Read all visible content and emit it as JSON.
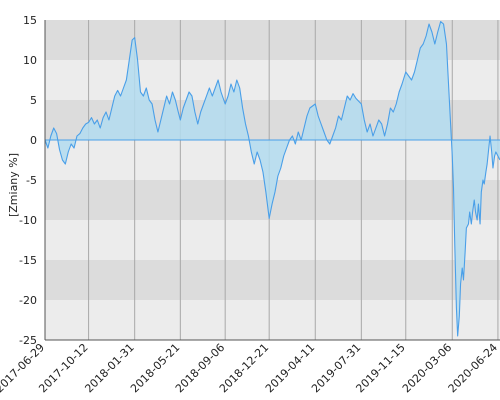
{
  "chart_data": {
    "type": "area",
    "title": "",
    "xlabel": "",
    "ylabel": "[Zmiany %]",
    "ylim": [
      -25,
      15
    ],
    "y_ticks": [
      15,
      10,
      5,
      0,
      -5,
      -10,
      -15,
      -20,
      -25
    ],
    "x_tick_labels": [
      "2017-06-29",
      "2017-10-12",
      "2018-01-31",
      "2018-05-21",
      "2018-09-06",
      "2018-12-21",
      "2019-04-11",
      "2019-07-31",
      "2019-11-15",
      "2020-03-06",
      "2020-06-24"
    ],
    "grid": true,
    "colors": {
      "band_dark": "#dcdcdc",
      "band_light": "#ececec",
      "line": "#4a9fe8",
      "fill": "#b3dcf0",
      "gridline": "#a8a8a8",
      "axis": "#555555"
    },
    "series": [
      {
        "values": [
          {
            "x": "2017-06-29",
            "y": 0.0
          },
          {
            "x": "2017-07-06",
            "y": -1.0
          },
          {
            "x": "2017-07-13",
            "y": 0.5
          },
          {
            "x": "2017-07-20",
            "y": 1.5
          },
          {
            "x": "2017-07-27",
            "y": 0.8
          },
          {
            "x": "2017-08-03",
            "y": -1.2
          },
          {
            "x": "2017-08-10",
            "y": -2.5
          },
          {
            "x": "2017-08-17",
            "y": -3.0
          },
          {
            "x": "2017-08-24",
            "y": -1.5
          },
          {
            "x": "2017-08-31",
            "y": -0.5
          },
          {
            "x": "2017-09-07",
            "y": -1.0
          },
          {
            "x": "2017-09-14",
            "y": 0.5
          },
          {
            "x": "2017-09-21",
            "y": 0.8
          },
          {
            "x": "2017-09-28",
            "y": 1.5
          },
          {
            "x": "2017-10-05",
            "y": 2.0
          },
          {
            "x": "2017-10-12",
            "y": 2.2
          },
          {
            "x": "2017-10-19",
            "y": 2.8
          },
          {
            "x": "2017-10-26",
            "y": 2.0
          },
          {
            "x": "2017-11-02",
            "y": 2.5
          },
          {
            "x": "2017-11-09",
            "y": 1.5
          },
          {
            "x": "2017-11-16",
            "y": 2.8
          },
          {
            "x": "2017-11-23",
            "y": 3.5
          },
          {
            "x": "2017-11-30",
            "y": 2.5
          },
          {
            "x": "2017-12-07",
            "y": 4.0
          },
          {
            "x": "2017-12-14",
            "y": 5.5
          },
          {
            "x": "2017-12-21",
            "y": 6.2
          },
          {
            "x": "2017-12-28",
            "y": 5.5
          },
          {
            "x": "2018-01-04",
            "y": 6.5
          },
          {
            "x": "2018-01-11",
            "y": 7.5
          },
          {
            "x": "2018-01-18",
            "y": 10.0
          },
          {
            "x": "2018-01-25",
            "y": 12.5
          },
          {
            "x": "2018-01-31",
            "y": 12.8
          },
          {
            "x": "2018-02-07",
            "y": 10.0
          },
          {
            "x": "2018-02-14",
            "y": 6.0
          },
          {
            "x": "2018-02-21",
            "y": 5.5
          },
          {
            "x": "2018-02-28",
            "y": 6.5
          },
          {
            "x": "2018-03-07",
            "y": 5.0
          },
          {
            "x": "2018-03-14",
            "y": 4.5
          },
          {
            "x": "2018-03-21",
            "y": 2.5
          },
          {
            "x": "2018-03-28",
            "y": 1.0
          },
          {
            "x": "2018-04-04",
            "y": 2.5
          },
          {
            "x": "2018-04-11",
            "y": 4.0
          },
          {
            "x": "2018-04-18",
            "y": 5.5
          },
          {
            "x": "2018-04-25",
            "y": 4.5
          },
          {
            "x": "2018-05-02",
            "y": 6.0
          },
          {
            "x": "2018-05-09",
            "y": 5.0
          },
          {
            "x": "2018-05-16",
            "y": 3.5
          },
          {
            "x": "2018-05-21",
            "y": 2.5
          },
          {
            "x": "2018-05-28",
            "y": 4.0
          },
          {
            "x": "2018-06-04",
            "y": 5.0
          },
          {
            "x": "2018-06-11",
            "y": 6.0
          },
          {
            "x": "2018-06-18",
            "y": 5.5
          },
          {
            "x": "2018-06-25",
            "y": 3.5
          },
          {
            "x": "2018-07-02",
            "y": 2.0
          },
          {
            "x": "2018-07-09",
            "y": 3.5
          },
          {
            "x": "2018-07-16",
            "y": 4.5
          },
          {
            "x": "2018-07-23",
            "y": 5.5
          },
          {
            "x": "2018-07-30",
            "y": 6.5
          },
          {
            "x": "2018-08-06",
            "y": 5.5
          },
          {
            "x": "2018-08-13",
            "y": 6.5
          },
          {
            "x": "2018-08-20",
            "y": 7.5
          },
          {
            "x": "2018-08-27",
            "y": 6.0
          },
          {
            "x": "2018-09-06",
            "y": 4.5
          },
          {
            "x": "2018-09-13",
            "y": 5.5
          },
          {
            "x": "2018-09-20",
            "y": 7.0
          },
          {
            "x": "2018-09-27",
            "y": 6.0
          },
          {
            "x": "2018-10-04",
            "y": 7.5
          },
          {
            "x": "2018-10-11",
            "y": 6.5
          },
          {
            "x": "2018-10-18",
            "y": 4.0
          },
          {
            "x": "2018-10-25",
            "y": 2.0
          },
          {
            "x": "2018-11-01",
            "y": 0.5
          },
          {
            "x": "2018-11-08",
            "y": -1.5
          },
          {
            "x": "2018-11-15",
            "y": -3.0
          },
          {
            "x": "2018-11-22",
            "y": -1.5
          },
          {
            "x": "2018-11-29",
            "y": -2.5
          },
          {
            "x": "2018-12-06",
            "y": -4.0
          },
          {
            "x": "2018-12-13",
            "y": -6.5
          },
          {
            "x": "2018-12-21",
            "y": -9.8
          },
          {
            "x": "2018-12-28",
            "y": -8.0
          },
          {
            "x": "2019-01-04",
            "y": -6.5
          },
          {
            "x": "2019-01-11",
            "y": -4.5
          },
          {
            "x": "2019-01-18",
            "y": -3.5
          },
          {
            "x": "2019-01-25",
            "y": -2.0
          },
          {
            "x": "2019-02-01",
            "y": -1.0
          },
          {
            "x": "2019-02-08",
            "y": 0.0
          },
          {
            "x": "2019-02-15",
            "y": 0.5
          },
          {
            "x": "2019-02-22",
            "y": -0.5
          },
          {
            "x": "2019-03-01",
            "y": 1.0
          },
          {
            "x": "2019-03-08",
            "y": 0.0
          },
          {
            "x": "2019-03-15",
            "y": 1.5
          },
          {
            "x": "2019-03-22",
            "y": 3.0
          },
          {
            "x": "2019-03-29",
            "y": 4.0
          },
          {
            "x": "2019-04-11",
            "y": 4.5
          },
          {
            "x": "2019-04-18",
            "y": 3.0
          },
          {
            "x": "2019-04-25",
            "y": 2.0
          },
          {
            "x": "2019-05-02",
            "y": 1.0
          },
          {
            "x": "2019-05-09",
            "y": 0.0
          },
          {
            "x": "2019-05-16",
            "y": -0.5
          },
          {
            "x": "2019-05-23",
            "y": 0.5
          },
          {
            "x": "2019-05-30",
            "y": 1.5
          },
          {
            "x": "2019-06-06",
            "y": 3.0
          },
          {
            "x": "2019-06-13",
            "y": 2.5
          },
          {
            "x": "2019-06-20",
            "y": 4.0
          },
          {
            "x": "2019-06-27",
            "y": 5.5
          },
          {
            "x": "2019-07-04",
            "y": 5.0
          },
          {
            "x": "2019-07-11",
            "y": 5.8
          },
          {
            "x": "2019-07-18",
            "y": 5.2
          },
          {
            "x": "2019-07-31",
            "y": 4.5
          },
          {
            "x": "2019-08-07",
            "y": 2.5
          },
          {
            "x": "2019-08-14",
            "y": 1.0
          },
          {
            "x": "2019-08-21",
            "y": 2.0
          },
          {
            "x": "2019-08-28",
            "y": 0.5
          },
          {
            "x": "2019-09-04",
            "y": 1.5
          },
          {
            "x": "2019-09-11",
            "y": 2.5
          },
          {
            "x": "2019-09-18",
            "y": 2.0
          },
          {
            "x": "2019-09-25",
            "y": 0.5
          },
          {
            "x": "2019-10-02",
            "y": 2.0
          },
          {
            "x": "2019-10-09",
            "y": 4.0
          },
          {
            "x": "2019-10-16",
            "y": 3.5
          },
          {
            "x": "2019-10-23",
            "y": 4.5
          },
          {
            "x": "2019-10-30",
            "y": 6.0
          },
          {
            "x": "2019-11-06",
            "y": 7.0
          },
          {
            "x": "2019-11-15",
            "y": 8.5
          },
          {
            "x": "2019-11-22",
            "y": 8.0
          },
          {
            "x": "2019-11-29",
            "y": 7.5
          },
          {
            "x": "2019-12-06",
            "y": 8.5
          },
          {
            "x": "2019-12-13",
            "y": 10.0
          },
          {
            "x": "2019-12-20",
            "y": 11.5
          },
          {
            "x": "2019-12-27",
            "y": 12.0
          },
          {
            "x": "2020-01-03",
            "y": 13.0
          },
          {
            "x": "2020-01-10",
            "y": 14.5
          },
          {
            "x": "2020-01-17",
            "y": 13.5
          },
          {
            "x": "2020-01-24",
            "y": 12.0
          },
          {
            "x": "2020-01-31",
            "y": 13.5
          },
          {
            "x": "2020-02-07",
            "y": 14.8
          },
          {
            "x": "2020-02-14",
            "y": 14.5
          },
          {
            "x": "2020-02-21",
            "y": 12.0
          },
          {
            "x": "2020-02-28",
            "y": 5.0
          },
          {
            "x": "2020-03-06",
            "y": -2.0
          },
          {
            "x": "2020-03-09",
            "y": -6.0
          },
          {
            "x": "2020-03-12",
            "y": -13.0
          },
          {
            "x": "2020-03-16",
            "y": -21.0
          },
          {
            "x": "2020-03-19",
            "y": -24.5
          },
          {
            "x": "2020-03-23",
            "y": -22.0
          },
          {
            "x": "2020-03-26",
            "y": -18.0
          },
          {
            "x": "2020-03-30",
            "y": -16.0
          },
          {
            "x": "2020-04-02",
            "y": -17.5
          },
          {
            "x": "2020-04-06",
            "y": -14.0
          },
          {
            "x": "2020-04-09",
            "y": -11.0
          },
          {
            "x": "2020-04-14",
            "y": -10.5
          },
          {
            "x": "2020-04-17",
            "y": -9.0
          },
          {
            "x": "2020-04-21",
            "y": -10.5
          },
          {
            "x": "2020-04-24",
            "y": -9.0
          },
          {
            "x": "2020-04-28",
            "y": -7.5
          },
          {
            "x": "2020-05-01",
            "y": -9.0
          },
          {
            "x": "2020-05-05",
            "y": -10.0
          },
          {
            "x": "2020-05-08",
            "y": -8.0
          },
          {
            "x": "2020-05-12",
            "y": -10.5
          },
          {
            "x": "2020-05-15",
            "y": -6.5
          },
          {
            "x": "2020-05-19",
            "y": -5.0
          },
          {
            "x": "2020-05-22",
            "y": -5.5
          },
          {
            "x": "2020-05-26",
            "y": -4.0
          },
          {
            "x": "2020-05-29",
            "y": -3.0
          },
          {
            "x": "2020-06-02",
            "y": -1.0
          },
          {
            "x": "2020-06-05",
            "y": 0.5
          },
          {
            "x": "2020-06-09",
            "y": -1.5
          },
          {
            "x": "2020-06-12",
            "y": -3.5
          },
          {
            "x": "2020-06-16",
            "y": -2.0
          },
          {
            "x": "2020-06-19",
            "y": -1.5
          },
          {
            "x": "2020-06-24",
            "y": -2.0
          },
          {
            "x": "2020-06-29",
            "y": -2.5
          }
        ]
      }
    ]
  }
}
